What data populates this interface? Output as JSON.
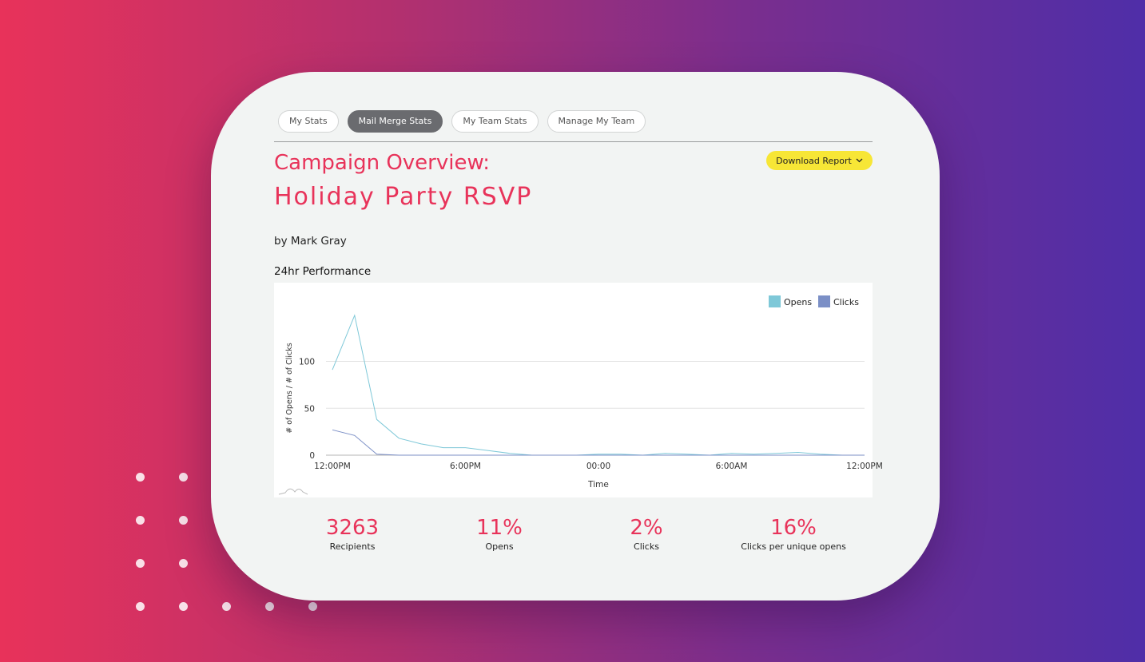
{
  "tabs": [
    "My Stats",
    "Mail Merge Stats",
    "My Team Stats",
    "Manage My Team"
  ],
  "active_tab": "Mail Merge Stats",
  "campaign": {
    "title": "Campaign Overview:",
    "name": "Holiday Party RSVP",
    "byline": "by Mark Gray"
  },
  "download_button": {
    "label": "Download Report",
    "icon": "chevron-down-icon"
  },
  "section_title": "24hr Performance",
  "colors": {
    "accent": "#e8335a",
    "opens": "#7ec8d8",
    "clicks": "#7b8fc6",
    "download": "#f7e636"
  },
  "chart_data": {
    "type": "line",
    "title": "",
    "xlabel": "Time",
    "ylabel": "# of Opens / # of Clicks",
    "x_tick_labels": [
      "12:00PM",
      "6:00PM",
      "00:00",
      "6:00AM",
      "12:00PM"
    ],
    "y_ticks": [
      0,
      50,
      100
    ],
    "ylim": [
      0,
      160
    ],
    "x_hours": [
      0,
      1,
      2,
      3,
      4,
      5,
      6,
      7,
      8,
      9,
      10,
      11,
      12,
      13,
      14,
      15,
      16,
      17,
      18,
      19,
      20,
      21,
      22,
      23,
      24
    ],
    "series": [
      {
        "name": "Opens",
        "color": "#7ec8d8",
        "values": [
          91,
          149,
          38,
          18,
          12,
          8,
          8,
          5,
          2,
          0,
          0,
          0,
          1,
          1,
          0,
          2,
          1,
          0,
          2,
          1,
          2,
          3,
          1,
          0,
          0
        ]
      },
      {
        "name": "Clicks",
        "color": "#7b8fc6",
        "values": [
          27,
          21,
          1,
          0,
          0,
          0,
          0,
          0,
          0,
          0,
          0,
          0,
          0,
          0,
          0,
          0,
          0,
          0,
          0,
          0,
          0,
          0,
          0,
          0,
          0
        ]
      }
    ],
    "legend_position": "top-right",
    "grid": true
  },
  "stats": [
    {
      "value": "3263",
      "label": "Recipients"
    },
    {
      "value": "11%",
      "label": "Opens"
    },
    {
      "value": "2%",
      "label": "Clicks"
    },
    {
      "value": "16%",
      "label": "Clicks per unique opens"
    }
  ]
}
